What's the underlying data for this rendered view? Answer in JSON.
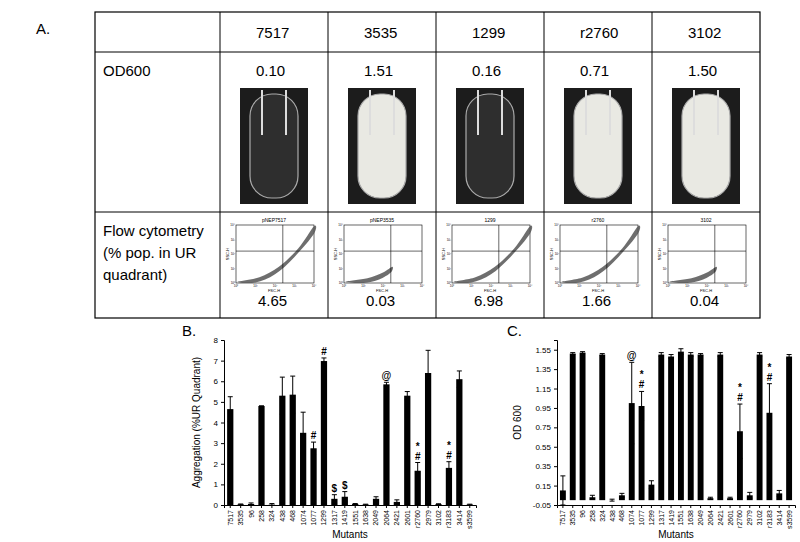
{
  "panel_labels": [
    "A.",
    "B.",
    "C."
  ],
  "table": {
    "header": [
      "7517",
      "3535",
      "1299",
      "r2760",
      "3102"
    ],
    "rows": [
      {
        "label": [
          "OD600"
        ],
        "cells": [
          "0.10",
          "1.51",
          "0.16",
          "0.71",
          "1.50"
        ]
      },
      {
        "label": [
          "Flow cytometry",
          "(% pop. in UR",
          "quadrant)"
        ],
        "cells": [
          "4.65",
          "0.03",
          "6.98",
          "1.66",
          "0.04"
        ]
      }
    ],
    "plot_titles": [
      "pNEP7517",
      "pNEP3535",
      "1299",
      "r2760",
      "3102"
    ],
    "plot_x_label": "FSC-H",
    "plot_y_label": "SSC-H",
    "plot_ticks": [
      "10⁰",
      "10¹",
      "10²",
      "10³",
      "10⁴"
    ]
  },
  "chart_data": [
    {
      "type": "bar",
      "y_label": "Aggregation (%UR Quadrant)",
      "x_label": "Mutants",
      "color": "#000000",
      "categories": [
        "7517",
        "3535",
        "96",
        "258",
        "324",
        "438",
        "468",
        "1074",
        "1077",
        "1299",
        "1317",
        "1419",
        "1551",
        "1638",
        "2049",
        "2064",
        "2421",
        "2601",
        "r2760",
        "2979",
        "3102",
        "r3183",
        "3414",
        "s3599"
      ],
      "values": [
        4.65,
        0.03,
        0.05,
        4.8,
        0.02,
        5.3,
        5.35,
        3.5,
        2.75,
        6.98,
        0.3,
        0.4,
        0.05,
        0.02,
        0.3,
        5.85,
        0.15,
        5.3,
        1.66,
        6.4,
        0.04,
        1.8,
        6.1,
        0.02
      ],
      "errors": [
        0.6,
        0.02,
        0.05,
        0,
        0.05,
        0.9,
        0.9,
        1.0,
        0.3,
        0.15,
        0.2,
        0.25,
        0.02,
        0.02,
        0.1,
        0.1,
        0.1,
        0.2,
        0.4,
        1.1,
        0.02,
        0.3,
        0.4,
        0.02
      ],
      "annotations": [
        {
          "category": "1077",
          "text": "#"
        },
        {
          "category": "1299",
          "text": "#"
        },
        {
          "category": "1317",
          "text": "$"
        },
        {
          "category": "1419",
          "text": "$"
        },
        {
          "category": "2064",
          "text": "@"
        },
        {
          "category": "r2760",
          "text": "#"
        },
        {
          "category": "r2760",
          "text": "*"
        },
        {
          "category": "r3183",
          "text": "#"
        },
        {
          "category": "r3183",
          "text": "*"
        }
      ],
      "ylim": [
        0,
        8
      ],
      "yticks": [
        0,
        1,
        2,
        3,
        4,
        5,
        6,
        7,
        8
      ]
    },
    {
      "type": "bar",
      "y_label": "OD 600",
      "x_label": "Mutants",
      "color": "#000000",
      "categories": [
        "7517",
        "3535",
        "96",
        "258",
        "324",
        "438",
        "468",
        "1074",
        "1077",
        "1299",
        "1317",
        "1419",
        "1551",
        "1638",
        "2049",
        "2064",
        "2421",
        "2601",
        "r2760",
        "2979",
        "3102",
        "r3183",
        "3414",
        "s3599"
      ],
      "values": [
        0.1,
        1.51,
        1.52,
        0.03,
        1.5,
        0.0,
        0.05,
        1.0,
        0.97,
        0.16,
        1.5,
        1.48,
        1.53,
        1.5,
        1.5,
        0.02,
        1.5,
        0.02,
        0.71,
        0.05,
        1.5,
        0.9,
        0.07,
        1.48
      ],
      "errors": [
        0.15,
        0.01,
        0.01,
        0.02,
        0.01,
        0.01,
        0.02,
        0.42,
        0.15,
        0.04,
        0.02,
        0.02,
        0.03,
        0.02,
        0.01,
        0.01,
        0.02,
        0.01,
        0.28,
        0.03,
        0.02,
        0.3,
        0.03,
        0.02
      ],
      "annotations": [
        {
          "category": "1074",
          "text": "@"
        },
        {
          "category": "1077",
          "text": "#"
        },
        {
          "category": "1077",
          "text": "*"
        },
        {
          "category": "r2760",
          "text": "#"
        },
        {
          "category": "r2760",
          "text": "*"
        },
        {
          "category": "r3183",
          "text": "#"
        },
        {
          "category": "r3183",
          "text": "*"
        }
      ],
      "ylim": [
        -0.05,
        1.65
      ],
      "yticks": [
        -0.05,
        0.15,
        0.35,
        0.55,
        0.75,
        0.95,
        1.15,
        1.35,
        1.55
      ]
    }
  ]
}
